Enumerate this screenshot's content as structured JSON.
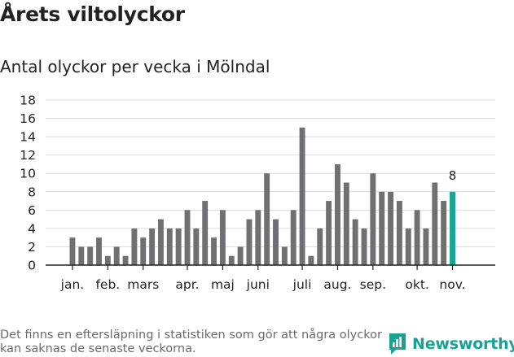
{
  "header": {
    "title": "Årets viltolyckor",
    "subtitle": "Antal olyckor per vecka i Mölndal"
  },
  "footer": {
    "note": "Det finns en eftersläpning i statistiken som gör att några olyckor kan saknas de senaste veckorna.",
    "brand": "Newsworthy"
  },
  "colors": {
    "bar": "#707073",
    "highlight": "#1aa595",
    "grid": "#dcdcdc",
    "axis": "#222222",
    "brand": "#17a394"
  },
  "chart_data": {
    "type": "bar",
    "title": "Antal olyckor per vecka i Mölndal",
    "xlabel": "",
    "ylabel": "",
    "ylim": [
      0,
      18
    ],
    "yticks": [
      0,
      2,
      4,
      6,
      8,
      10,
      12,
      14,
      16,
      18
    ],
    "grid": true,
    "values": [
      3,
      2,
      2,
      3,
      1,
      2,
      1,
      4,
      3,
      4,
      5,
      4,
      4,
      6,
      4,
      7,
      3,
      6,
      1,
      2,
      5,
      6,
      10,
      5,
      2,
      6,
      15,
      1,
      4,
      7,
      11,
      9,
      5,
      4,
      10,
      8,
      8,
      7,
      4,
      6,
      4,
      9,
      7,
      8
    ],
    "highlight_index": 43,
    "highlight_label": "8",
    "month_labels": [
      {
        "label": "jan.",
        "week_index": 0
      },
      {
        "label": "feb.",
        "week_index": 4
      },
      {
        "label": "mars",
        "week_index": 8
      },
      {
        "label": "apr.",
        "week_index": 13
      },
      {
        "label": "maj",
        "week_index": 17
      },
      {
        "label": "juni",
        "week_index": 21
      },
      {
        "label": "juli",
        "week_index": 26
      },
      {
        "label": "aug.",
        "week_index": 30
      },
      {
        "label": "sep.",
        "week_index": 34
      },
      {
        "label": "okt.",
        "week_index": 39
      },
      {
        "label": "nov.",
        "week_index": 43
      }
    ]
  }
}
